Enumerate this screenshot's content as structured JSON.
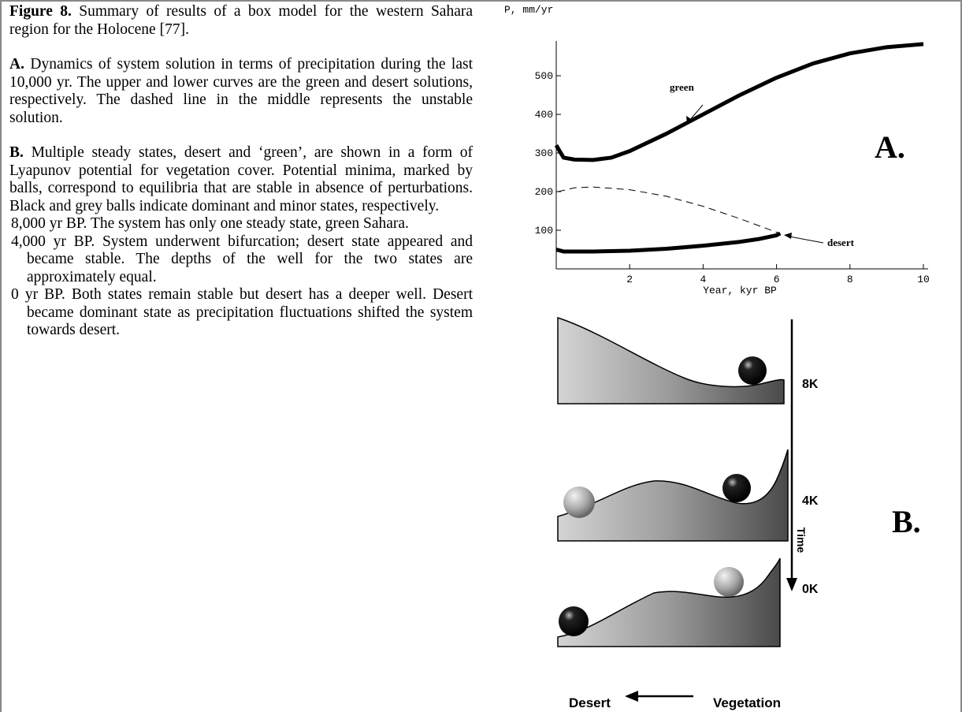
{
  "caption": {
    "figure_label": "Figure 8.",
    "figure_text": "Summary of results of a box model for the western Sahara region for the Holocene [77].",
    "part_a_label": "A.",
    "part_a_text": "Dynamics of system solution in terms of precipitation during the last 10,000 yr. The upper and lower curves are the green and desert solutions, respectively. The dashed line in the middle represents the unstable solution.",
    "part_b_label": "B.",
    "part_b_text": "Multiple steady states, desert and ‘green’, are shown in a form of Lyapunov potential for vegetation cover. Potential minima, marked by balls, correspond to equilibria that are stable in absence of perturbations. Black and grey balls indicate dominant and minor states, respectively.",
    "states": [
      "8,000 yr BP. The system has only one steady state, green Sahara.",
      "4,000 yr BP. System underwent bifurcation; desert state appeared and became stable. The depths of the well for the two states are approximately equal.",
      "0 yr BP. Both states remain stable but desert has a deeper well. Desert became dominant state as precipitation fluctuations shifted the system towards desert."
    ]
  },
  "chart_data": {
    "type": "line",
    "panel_label": "A.",
    "ylabel": "P, mm/yr",
    "xlabel": "Year, kyr BP",
    "xlim": [
      0,
      10
    ],
    "xticks": [
      2,
      4,
      6,
      8,
      10
    ],
    "ylim": [
      0,
      590
    ],
    "yticks": [
      100,
      200,
      300,
      400,
      500
    ],
    "series": [
      {
        "name": "green",
        "color": "#000000",
        "style": "solid",
        "x": [
          0,
          0.2,
          0.5,
          1,
          1.5,
          2,
          3,
          4,
          5,
          6,
          7,
          8,
          9,
          10
        ],
        "values": [
          320,
          288,
          283,
          282,
          288,
          305,
          350,
          400,
          450,
          495,
          532,
          558,
          574,
          582
        ]
      },
      {
        "color": "#000000",
        "style": "dashed",
        "x": [
          0.05,
          0.5,
          1,
          2,
          3,
          4,
          5,
          6,
          6.1
        ],
        "values": [
          200,
          210,
          212,
          205,
          188,
          162,
          130,
          95,
          90
        ]
      },
      {
        "name": "desert",
        "color": "#000000",
        "style": "solid",
        "x": [
          0,
          0.2,
          1,
          2,
          3,
          4,
          5,
          5.5,
          6,
          6.1
        ],
        "values": [
          50,
          45,
          45,
          47,
          52,
          60,
          70,
          77,
          87,
          92
        ]
      }
    ]
  },
  "diagram": {
    "panel_label": "B.",
    "time_labels": [
      "8K",
      "4K",
      "0K"
    ],
    "axis_label": "Time",
    "left_label": "Desert",
    "right_label": "Vegetation"
  }
}
